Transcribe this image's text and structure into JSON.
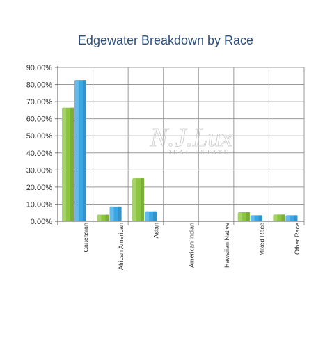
{
  "chart_data": {
    "type": "bar",
    "title": "Edgewater Breakdown by Race",
    "categories": [
      "Caucasian",
      "African American",
      "Asian",
      "American Indian",
      "Hawaiian Native",
      "Mixed Race",
      "Other Race"
    ],
    "series": [
      {
        "color": "#8cc63f",
        "values": [
          66.5,
          3.8,
          25.2,
          0,
          0,
          5.3,
          3.9
        ]
      },
      {
        "color": "#3aa6e3",
        "values": [
          82.6,
          8.6,
          5.8,
          0,
          0,
          3.5,
          3.5
        ]
      }
    ],
    "ylim": [
      0,
      90
    ],
    "yticks": [
      "0.00%",
      "10.00%",
      "20.00%",
      "30.00%",
      "40.00%",
      "50.00%",
      "60.00%",
      "70.00%",
      "80.00%",
      "90.00%"
    ],
    "xlabel": "",
    "ylabel": "",
    "grid": true,
    "legend": "none"
  },
  "watermark": {
    "main": "N.J.Lux",
    "sub": "REAL ESTATE"
  }
}
